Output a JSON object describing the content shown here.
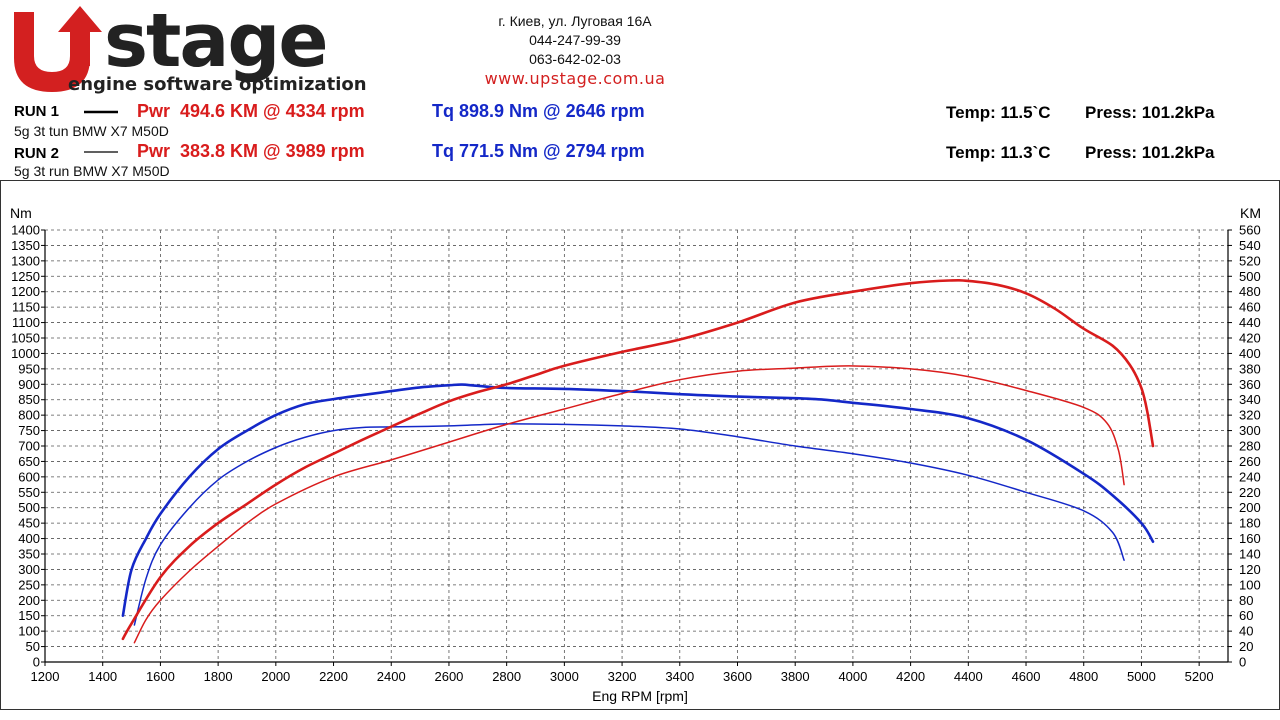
{
  "header": {
    "logo_text": "Ustage",
    "logo_tagline": "engine software optimization",
    "address": "г. Киев, ул. Луговая 16А",
    "phone1": "044-247-99-39",
    "phone2": "063-642-02-03",
    "website": "www.upstage.com.ua",
    "brand_red": "#d32020"
  },
  "runs": [
    {
      "label": "RUN 1",
      "description": "5g 3t tun BMW X7 M50D",
      "power": "Pwr  494.6 KM @ 4334 rpm",
      "torque": "Tq 898.9 Nm @ 2646 rpm",
      "temp": "Temp: 11.5`C",
      "press": "Press: 101.2kPa"
    },
    {
      "label": "RUN 2",
      "description": "5g 3t run BMW X7 M50D",
      "power": "Pwr  383.8 KM @ 3989 rpm",
      "torque": "Tq 771.5 Nm @ 2794 rpm",
      "temp": "Temp: 11.3`C",
      "press": "Press: 101.2kPa"
    }
  ],
  "chart_data": {
    "type": "line",
    "xlabel": "Eng RPM [rpm]",
    "ylabel_left": "Nm",
    "ylabel_right": "KM",
    "xlim": [
      1200,
      5300
    ],
    "ylim_left": [
      0,
      1400
    ],
    "ylim_right": [
      0,
      560
    ],
    "xticks": [
      1200,
      1400,
      1600,
      1800,
      2000,
      2200,
      2400,
      2600,
      2800,
      3000,
      3200,
      3400,
      3600,
      3800,
      4000,
      4200,
      4400,
      4600,
      4800,
      5000,
      5200
    ],
    "grid": true,
    "colors": {
      "power": "#d91c1c",
      "torque": "#1428c8"
    },
    "series": [
      {
        "run": "RUN 1",
        "metric": "torque",
        "axis": "left",
        "width": 2.6,
        "x": [
          1470,
          1500,
          1550,
          1600,
          1700,
          1800,
          1900,
          2000,
          2100,
          2200,
          2300,
          2400,
          2500,
          2600,
          2646,
          2700,
          2800,
          3000,
          3200,
          3400,
          3600,
          3800,
          3900,
          4000,
          4200,
          4400,
          4600,
          4800,
          4900,
          5000,
          5040
        ],
        "y": [
          150,
          300,
          400,
          480,
          600,
          690,
          750,
          800,
          835,
          852,
          865,
          878,
          890,
          897,
          898.9,
          895,
          888,
          885,
          878,
          868,
          860,
          855,
          850,
          840,
          820,
          790,
          720,
          610,
          540,
          450,
          390
        ]
      },
      {
        "run": "RUN 2",
        "metric": "torque",
        "axis": "left",
        "width": 1.5,
        "x": [
          1510,
          1550,
          1600,
          1700,
          1800,
          1900,
          2000,
          2100,
          2200,
          2300,
          2400,
          2600,
          2794,
          3000,
          3200,
          3400,
          3600,
          3800,
          4000,
          4200,
          4400,
          4600,
          4800,
          4900,
          4940
        ],
        "y": [
          120,
          270,
          380,
          500,
          590,
          650,
          695,
          728,
          750,
          760,
          762,
          765,
          771.5,
          770,
          765,
          755,
          730,
          700,
          675,
          645,
          605,
          550,
          490,
          420,
          330
        ]
      },
      {
        "run": "RUN 1",
        "metric": "power",
        "axis": "right",
        "width": 2.6,
        "x": [
          1470,
          1500,
          1600,
          1700,
          1800,
          1900,
          2000,
          2100,
          2200,
          2300,
          2400,
          2500,
          2600,
          2700,
          2800,
          2900,
          3000,
          3200,
          3400,
          3600,
          3800,
          4000,
          4200,
          4334,
          4400,
          4500,
          4600,
          4700,
          4800,
          4900,
          4960,
          5000,
          5020,
          5040
        ],
        "y": [
          30,
          50,
          110,
          150,
          180,
          205,
          230,
          252,
          270,
          288,
          305,
          322,
          338,
          350,
          360,
          372,
          384,
          402,
          418,
          440,
          466,
          480,
          491,
          494.6,
          494,
          489,
          478,
          458,
          432,
          410,
          385,
          355,
          325,
          280
        ]
      },
      {
        "run": "RUN 2",
        "metric": "power",
        "axis": "right",
        "width": 1.5,
        "x": [
          1510,
          1550,
          1600,
          1700,
          1800,
          1900,
          2000,
          2200,
          2400,
          2600,
          2800,
          3000,
          3200,
          3400,
          3600,
          3800,
          3989,
          4200,
          4400,
          4600,
          4800,
          4880,
          4920,
          4940
        ],
        "y": [
          25,
          55,
          80,
          118,
          150,
          180,
          205,
          240,
          262,
          285,
          308,
          328,
          348,
          366,
          377,
          381,
          383.8,
          380,
          370,
          352,
          330,
          310,
          275,
          230
        ]
      }
    ]
  }
}
